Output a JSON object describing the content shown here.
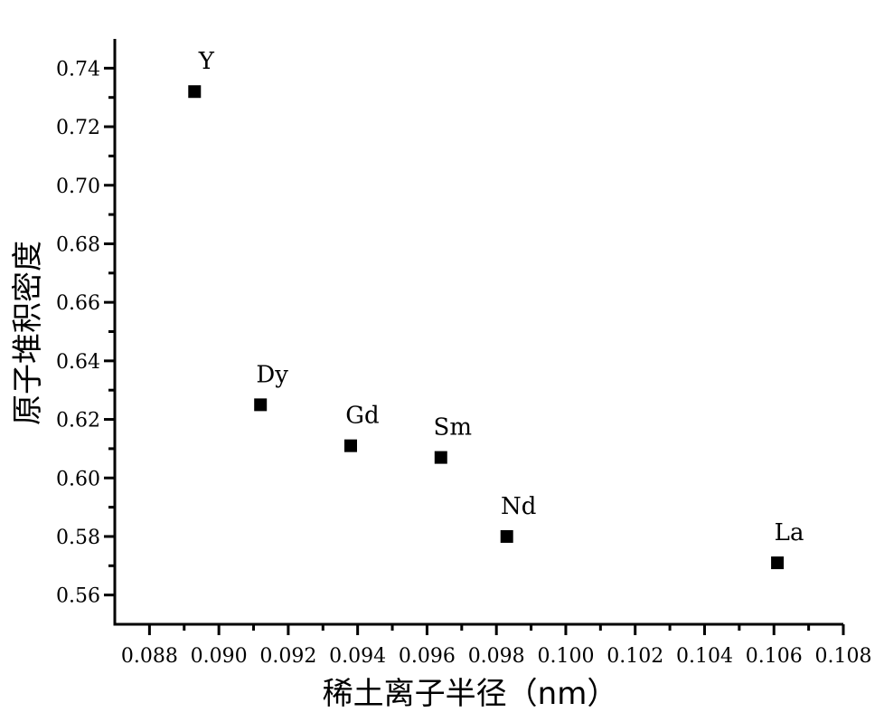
{
  "chart_data": {
    "type": "scatter",
    "title": "",
    "xlabel": "稀土离子半径（nm）",
    "ylabel": "原子堆积密度",
    "xlim": [
      0.087,
      0.108
    ],
    "ylim": [
      0.55,
      0.75
    ],
    "x_ticks": [
      0.088,
      0.09,
      0.092,
      0.094,
      0.096,
      0.098,
      0.1,
      0.102,
      0.104,
      0.106,
      0.108
    ],
    "x_tick_labels": [
      "0.088",
      "0.090",
      "0.092",
      "0.094",
      "0.096",
      "0.098",
      "0.100",
      "0.102",
      "0.104",
      "0.106",
      "0.108"
    ],
    "y_ticks": [
      0.56,
      0.58,
      0.6,
      0.62,
      0.64,
      0.66,
      0.68,
      0.7,
      0.72,
      0.74
    ],
    "y_tick_labels": [
      "0.56",
      "0.58",
      "0.60",
      "0.62",
      "0.64",
      "0.66",
      "0.68",
      "0.70",
      "0.72",
      "0.74"
    ],
    "grid": false,
    "legend": "none",
    "marker_color": "#000000",
    "points": [
      {
        "label": "Y",
        "x": 0.0893,
        "y": 0.732
      },
      {
        "label": "Dy",
        "x": 0.0912,
        "y": 0.625
      },
      {
        "label": "Gd",
        "x": 0.0938,
        "y": 0.611
      },
      {
        "label": "Sm",
        "x": 0.0964,
        "y": 0.607
      },
      {
        "label": "Nd",
        "x": 0.0983,
        "y": 0.58
      },
      {
        "label": "La",
        "x": 0.1061,
        "y": 0.571
      }
    ]
  }
}
